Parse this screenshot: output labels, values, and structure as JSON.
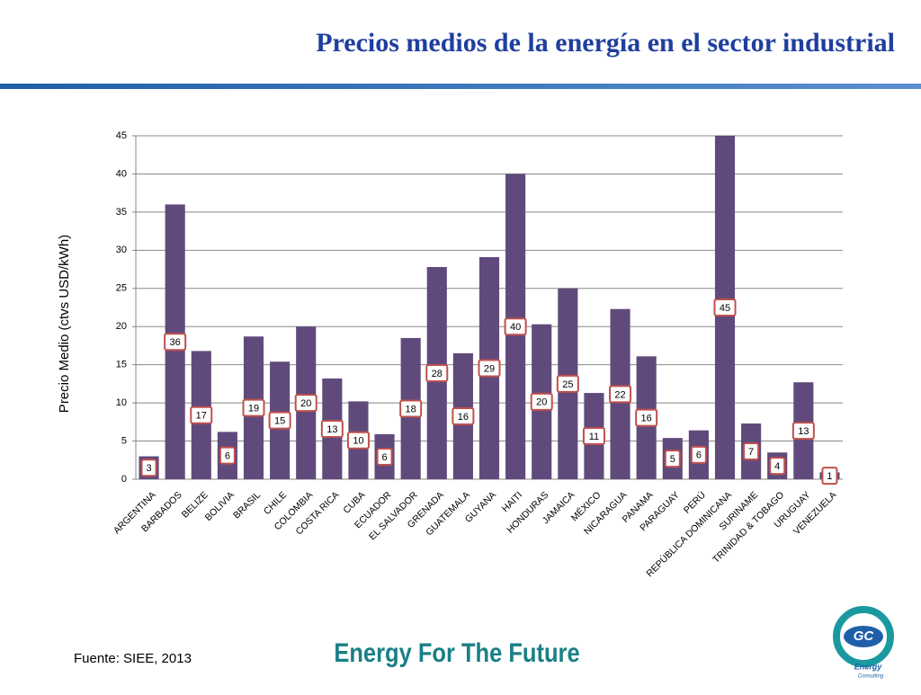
{
  "chart_data": {
    "type": "bar",
    "title": "Precios medios de la energía en el sector industrial",
    "y_label": "Precio Medio (ctvs USD/kWh)",
    "categories": [
      "ARGENTINA",
      "BARBADOS",
      "BELIZE",
      "BOLIVIA",
      "BRASIL",
      "CHILE",
      "COLOMBIA",
      "COSTA RICA",
      "CUBA",
      "ECUADOR",
      "EL SALVADOR",
      "GRENADA",
      "GUATEMALA",
      "GUYANA",
      "HAITI",
      "HONDURAS",
      "JAMAICA",
      "MÉXICO",
      "NICARAGUA",
      "PANAMA",
      "PARAGUAY",
      "PERÚ",
      "REPÚBLICA DOMINICANA",
      "SURINAME",
      "TRINIDAD & TOBAGO",
      "URUGUAY",
      "VENEZUELA"
    ],
    "values": [
      3.0,
      36.0,
      16.8,
      6.2,
      18.7,
      15.4,
      20.0,
      13.2,
      10.2,
      5.9,
      18.5,
      27.8,
      16.5,
      29.1,
      40.0,
      20.3,
      25.0,
      11.3,
      22.3,
      16.1,
      5.4,
      6.4,
      45.0,
      7.3,
      3.5,
      12.7,
      0.9
    ],
    "value_labels": [
      "3",
      "36",
      "17",
      "6",
      "19",
      "15",
      "20",
      "13",
      "10",
      "6",
      "18",
      "28",
      "16",
      "29",
      "40",
      "20",
      "25",
      "11",
      "22",
      "16",
      "5",
      "6",
      "45",
      "7",
      "4",
      "13",
      "1"
    ],
    "color": "#604a7b",
    "ylim": [
      0,
      45
    ],
    "yticks": [
      0,
      5,
      10,
      15,
      20,
      25,
      30,
      35,
      40,
      45
    ],
    "grid": true
  },
  "footer": {
    "source": "Fuente: SIEE, 2013",
    "slogan": "Energy For The Future",
    "logo": {
      "initials": "GC",
      "line1": "Energy",
      "line2": "Consulting"
    }
  }
}
